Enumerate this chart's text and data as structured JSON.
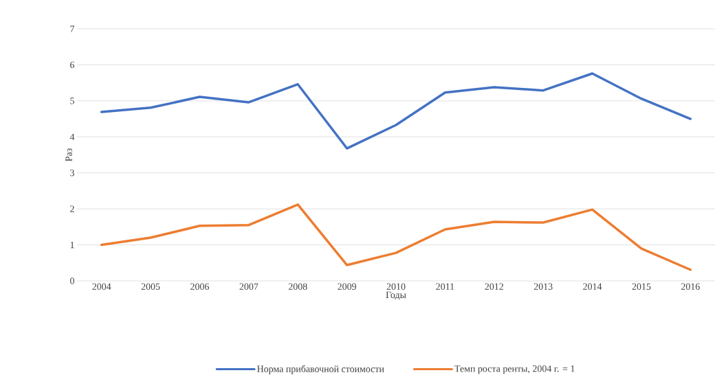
{
  "chart_data": {
    "type": "line",
    "xlabel": "Годы",
    "ylabel": "Раз",
    "categories": [
      "2004",
      "2005",
      "2006",
      "2007",
      "2008",
      "2009",
      "2010",
      "2011",
      "2012",
      "2013",
      "2014",
      "2015",
      "2016"
    ],
    "series": [
      {
        "name": "Норма прибавочной стоимости",
        "color": "#4472c4",
        "values": [
          4.69,
          4.81,
          5.11,
          4.96,
          5.46,
          3.68,
          4.33,
          5.23,
          5.38,
          5.29,
          5.76,
          5.06,
          4.5
        ]
      },
      {
        "name": "Темп роста ренты, 2004 г. = 1",
        "color": "#ed7d31",
        "values": [
          1.0,
          1.2,
          1.53,
          1.55,
          2.12,
          0.44,
          0.78,
          1.43,
          1.64,
          1.62,
          1.98,
          0.9,
          0.31
        ]
      }
    ],
    "ylim": [
      0,
      7
    ],
    "yticks": [
      0,
      1,
      2,
      3,
      4,
      5,
      6,
      7
    ],
    "grid": "y",
    "legend": "bottom",
    "marker": "none",
    "line_style": "solid"
  }
}
